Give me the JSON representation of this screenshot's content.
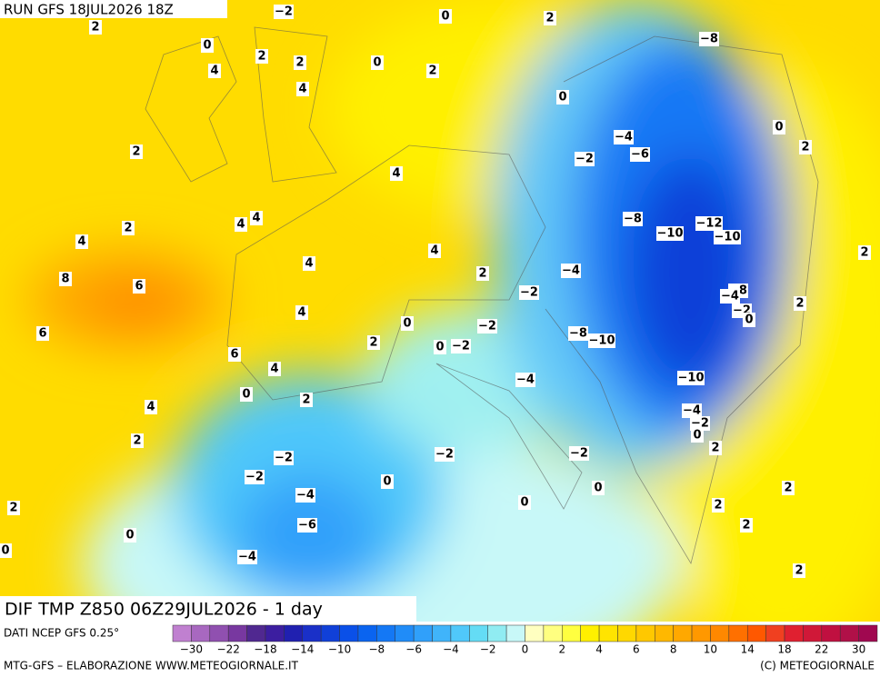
{
  "header": {
    "run": "RUN GFS 18JUL2026 18Z"
  },
  "map": {
    "title": "DIF TMP Z850 06Z29JUL2026 - 1 day",
    "labels": [
      "2",
      "−2",
      "0",
      "2",
      "0",
      "2",
      "2",
      "0",
      "2",
      "4",
      "4",
      "−8",
      "0",
      "0",
      "−4",
      "−6",
      "−2",
      "2",
      "2",
      "4",
      "4",
      "4",
      "2",
      "−8",
      "−12",
      "−10",
      "−10",
      "4",
      "4",
      "2",
      "4",
      "−4",
      "2",
      "8",
      "6",
      "−2",
      "−8",
      "−4",
      "2",
      "4",
      "−2",
      "0",
      "0",
      "−2",
      "−8",
      "−10",
      "6",
      "2",
      "0",
      "−2",
      "6",
      "4",
      "−10",
      "−4",
      "0",
      "2",
      "4",
      "−4",
      "−2",
      "0",
      "2",
      "2",
      "−2",
      "−2",
      "−2",
      "−2",
      "0",
      "0",
      "2",
      "−4",
      "2",
      "0",
      "2",
      "2",
      "−6",
      "0",
      "0",
      "−4",
      "2"
    ]
  },
  "colorbar": {
    "source": "DATI NCEP GFS 0.25°",
    "colors": [
      "#c080d0",
      "#a868c0",
      "#9050b0",
      "#7838a0",
      "#502890",
      "#3c1ea0",
      "#2020b0",
      "#1a30c8",
      "#1040d8",
      "#0a50e8",
      "#0a64f0",
      "#1478f5",
      "#208cf8",
      "#30a0fa",
      "#40b4fa",
      "#50c8fa",
      "#64dcf5",
      "#90ecf2",
      "#c8f8f8",
      "#ffffc0",
      "#ffff80",
      "#ffff40",
      "#fff000",
      "#ffe400",
      "#ffd800",
      "#ffc800",
      "#ffb800",
      "#ffa800",
      "#ff9800",
      "#ff8800",
      "#ff7000",
      "#ff5800",
      "#f04020",
      "#e02030",
      "#d01838",
      "#c01040",
      "#b01048",
      "#a00850"
    ],
    "ticks": [
      "−30",
      "−22",
      "−18",
      "−14",
      "−10",
      "−8",
      "−6",
      "−4",
      "−2",
      "0",
      "2",
      "4",
      "6",
      "8",
      "10",
      "14",
      "18",
      "22",
      "30"
    ]
  },
  "footer": {
    "left": "MTG-GFS – ELABORAZIONE WWW.METEOGIORNALE.IT",
    "right": "(C) METEOGIORNALE"
  }
}
